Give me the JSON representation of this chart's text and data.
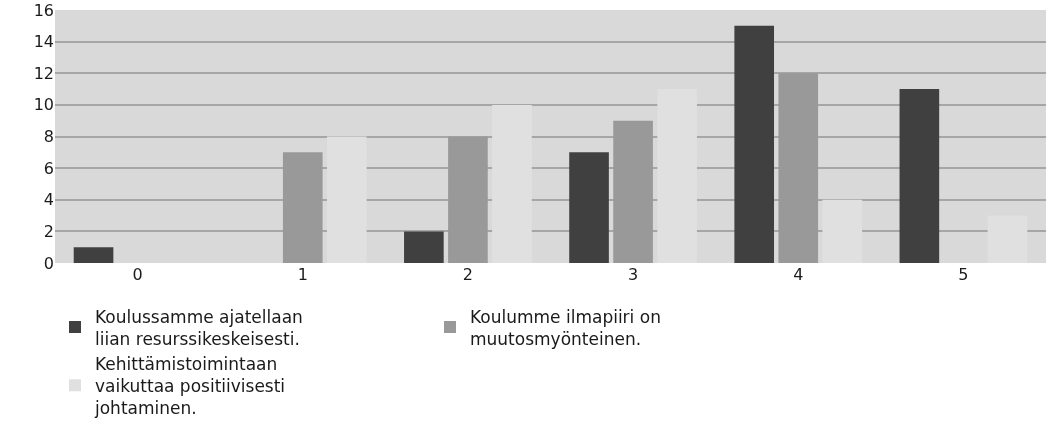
{
  "chart_data": {
    "type": "bar",
    "categories": [
      "0",
      "1",
      "2",
      "3",
      "4",
      "5"
    ],
    "series": [
      {
        "name": "Koulussamme ajatellaan liian resurssikeskeisesti.",
        "color": "#404040",
        "values": [
          1,
          0,
          2,
          7,
          15,
          11
        ]
      },
      {
        "name": "Koulumme ilmapiiri on muutosmyönteinen.",
        "color": "#999999",
        "values": [
          0,
          7,
          8,
          9,
          12,
          0
        ]
      },
      {
        "name": "Kehittämistoimintaan vaikuttaa positiivisesti johtaminen.",
        "color": "#e0e0e0",
        "values": [
          0,
          8,
          10,
          11,
          4,
          3
        ]
      }
    ],
    "ylim": [
      0,
      16
    ],
    "yticks": [
      0,
      2,
      4,
      6,
      8,
      10,
      12,
      14,
      16
    ],
    "grid": "y",
    "legend": "bottom"
  }
}
